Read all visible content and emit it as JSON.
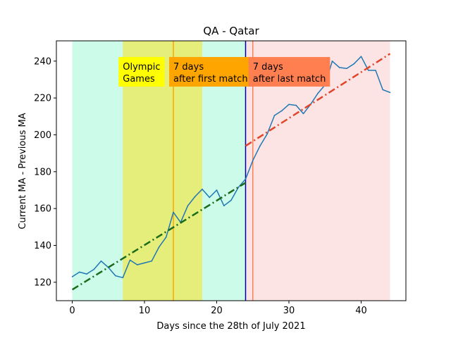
{
  "chart_data": {
    "type": "line",
    "title": "QA - Qatar",
    "xlabel": "Days since the 28th of July 2021",
    "ylabel": "Current MA - Previous MA",
    "xlim": [
      -2.2,
      46.2
    ],
    "ylim": [
      110,
      251
    ],
    "xticks": [
      0,
      10,
      20,
      30,
      40
    ],
    "yticks": [
      120,
      140,
      160,
      180,
      200,
      220,
      240
    ],
    "grid": false,
    "series": [
      {
        "color": "#1f77b4",
        "x": [
          0,
          1,
          2,
          3,
          4,
          5,
          6,
          7,
          8,
          9,
          10,
          11,
          12,
          13,
          14,
          15,
          16,
          17,
          18,
          19,
          20,
          21,
          22,
          23,
          24,
          25,
          26,
          27,
          28,
          29,
          30,
          31,
          32,
          33,
          34,
          35,
          36,
          37,
          38,
          39,
          40,
          41,
          42,
          43,
          44
        ],
        "values": [
          123,
          125.5,
          124.5,
          127,
          131.5,
          128,
          123.5,
          122.5,
          132,
          129.5,
          130.5,
          131.5,
          139,
          144.5,
          158,
          152.5,
          161.5,
          166.5,
          170.5,
          166,
          170,
          161.5,
          164.5,
          171.5,
          176,
          186,
          194,
          200.5,
          210.5,
          213,
          216.5,
          216,
          211.5,
          216.5,
          222.5,
          227,
          240,
          236.5,
          236,
          238.5,
          242.5,
          235,
          235,
          224.5,
          223
        ]
      }
    ],
    "trend_lines": [
      {
        "color": "#1a6b1a",
        "style": "dash-dot",
        "x": [
          0,
          24
        ],
        "y": [
          116,
          174
        ]
      },
      {
        "color": "#e0452a",
        "style": "dash-dot",
        "x": [
          24,
          44
        ],
        "y": [
          194,
          244
        ]
      }
    ],
    "regions": [
      {
        "x0": 0,
        "x1": 24,
        "color": "#ccfbea"
      },
      {
        "x0": 7,
        "x1": 18,
        "color": "#e5ee7a"
      },
      {
        "x0": 24,
        "x1": 44,
        "color": "#fde4e4"
      }
    ],
    "vlines": [
      {
        "x": 14,
        "color": "#ffa500"
      },
      {
        "x": 24,
        "color": "#0000aa"
      },
      {
        "x": 25,
        "color": "#ff7f50"
      }
    ],
    "annotations": [
      {
        "text": [
          "Olympic",
          "Games"
        ],
        "x": 7,
        "y": 230,
        "bg": "#ffff00"
      },
      {
        "text": [
          "7 days",
          "after first match"
        ],
        "x": 14,
        "y": 230,
        "bg": "#ffa500"
      },
      {
        "text": [
          "7 days",
          "after last match"
        ],
        "x": 25,
        "y": 230,
        "bg": "#ff7f50"
      }
    ]
  }
}
